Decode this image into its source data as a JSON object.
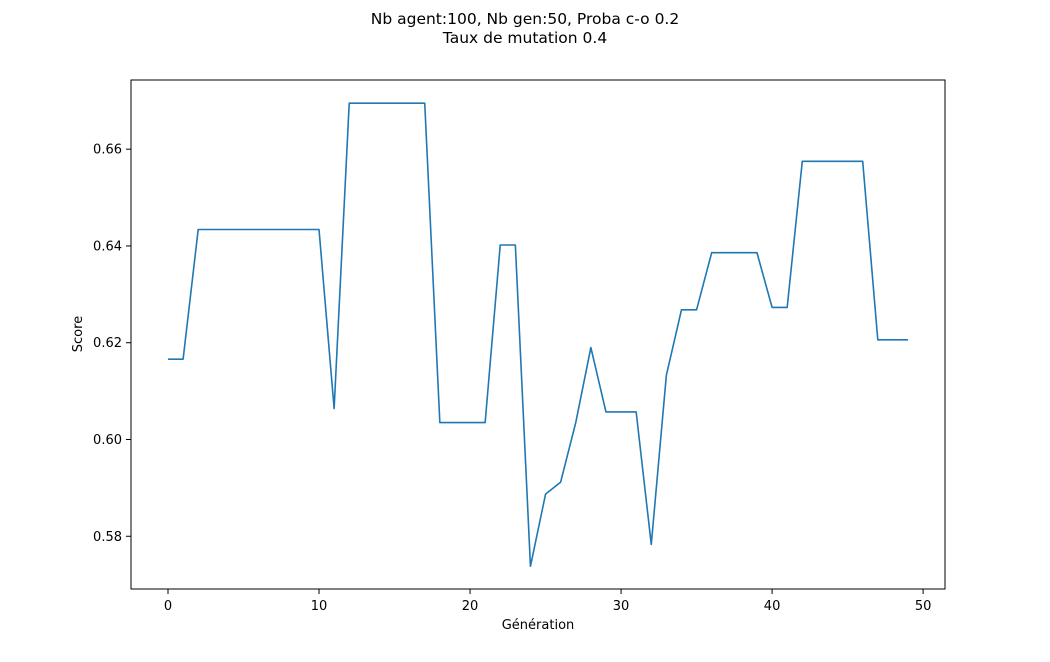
{
  "chart_data": {
    "type": "line",
    "title": "Nb agent:100, Nb gen:50, Proba c-o 0.2",
    "subtitle": "Taux de mutation 0.4",
    "xlabel": "Génération",
    "ylabel": "Score",
    "xlim": [
      -2.45,
      51.45
    ],
    "ylim": [
      0.5691,
      0.6743
    ],
    "xticks": [
      0,
      10,
      20,
      30,
      40,
      50
    ],
    "yticks": [
      0.58,
      0.6,
      0.62,
      0.64,
      0.66
    ],
    "xtick_labels": [
      "0",
      "10",
      "20",
      "30",
      "40",
      "50"
    ],
    "ytick_labels": [
      "0.58",
      "0.60",
      "0.62",
      "0.64",
      "0.66"
    ],
    "grid": false,
    "series": [
      {
        "color": "#1f77b4",
        "x": [
          0,
          1,
          2,
          3,
          4,
          5,
          6,
          7,
          8,
          9,
          10,
          11,
          12,
          13,
          14,
          15,
          16,
          17,
          18,
          19,
          20,
          21,
          22,
          23,
          24,
          25,
          26,
          27,
          28,
          29,
          30,
          31,
          32,
          33,
          34,
          35,
          36,
          37,
          38,
          39,
          40,
          41,
          42,
          43,
          44,
          45,
          46,
          47,
          48,
          49
        ],
        "values": [
          0.6166,
          0.6166,
          0.6434,
          0.6434,
          0.6434,
          0.6434,
          0.6434,
          0.6434,
          0.6434,
          0.6434,
          0.6434,
          0.6064,
          0.6695,
          0.6695,
          0.6695,
          0.6695,
          0.6695,
          0.6695,
          0.6035,
          0.6035,
          0.6035,
          0.6035,
          0.6402,
          0.6402,
          0.5738,
          0.5887,
          0.5912,
          0.6035,
          0.619,
          0.6057,
          0.6057,
          0.6057,
          0.5783,
          0.6133,
          0.6268,
          0.6268,
          0.6386,
          0.6386,
          0.6386,
          0.6386,
          0.6273,
          0.6273,
          0.6575,
          0.6575,
          0.6575,
          0.6575,
          0.6575,
          0.6206,
          0.6206,
          0.6206
        ]
      }
    ]
  }
}
